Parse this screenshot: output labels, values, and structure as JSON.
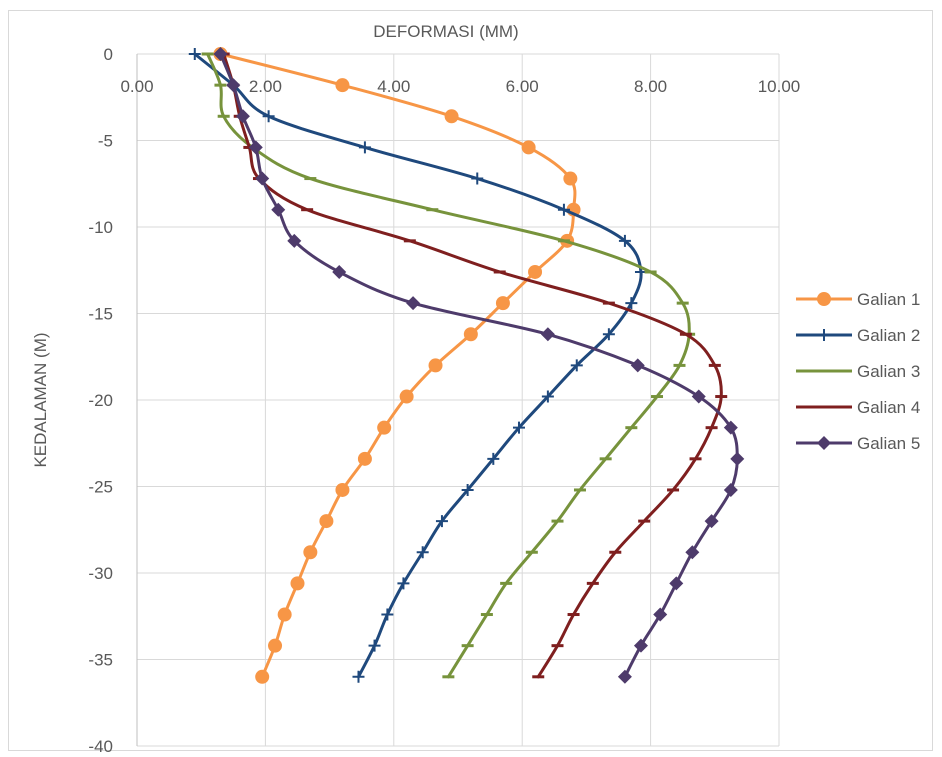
{
  "chart_data": {
    "type": "line",
    "title": "DEFORMASI (MM)",
    "xlabel": "",
    "ylabel": "KEDALAMAN (M)",
    "xlim": [
      0,
      10
    ],
    "ylim": [
      -40,
      0
    ],
    "x_axis_position": "top",
    "x_ticks": [
      0,
      2,
      4,
      6,
      8,
      10
    ],
    "x_tick_labels": [
      "0.00",
      "2.00",
      "4.00",
      "6.00",
      "8.00",
      "10.00"
    ],
    "y_ticks": [
      0,
      -5,
      -10,
      -15,
      -20,
      -25,
      -30,
      -35,
      -40
    ],
    "y_tick_labels": [
      "0",
      "-5",
      "-10",
      "-15",
      "-20",
      "-25",
      "-30",
      "-35",
      "-40"
    ],
    "grid": true,
    "legend_position": "right",
    "series": [
      {
        "name": "Galian 1",
        "color": "#F79646",
        "marker": "circle",
        "points": [
          [
            1.3,
            0
          ],
          [
            3.2,
            -1.8
          ],
          [
            4.9,
            -3.6
          ],
          [
            6.1,
            -5.4
          ],
          [
            6.75,
            -7.2
          ],
          [
            6.8,
            -9
          ],
          [
            6.7,
            -10.8
          ],
          [
            6.2,
            -12.6
          ],
          [
            5.7,
            -14.4
          ],
          [
            5.2,
            -16.2
          ],
          [
            4.65,
            -18
          ],
          [
            4.2,
            -19.8
          ],
          [
            3.85,
            -21.6
          ],
          [
            3.55,
            -23.4
          ],
          [
            3.2,
            -25.2
          ],
          [
            2.95,
            -27
          ],
          [
            2.7,
            -28.8
          ],
          [
            2.5,
            -30.6
          ],
          [
            2.3,
            -32.4
          ],
          [
            2.15,
            -34.2
          ],
          [
            1.95,
            -36
          ]
        ]
      },
      {
        "name": "Galian 2",
        "color": "#1F497D",
        "marker": "plus",
        "points": [
          [
            0.9,
            0
          ],
          [
            1.5,
            -1.8
          ],
          [
            2.05,
            -3.6
          ],
          [
            3.55,
            -5.4
          ],
          [
            5.3,
            -7.2
          ],
          [
            6.65,
            -9
          ],
          [
            7.6,
            -10.8
          ],
          [
            7.85,
            -12.6
          ],
          [
            7.7,
            -14.4
          ],
          [
            7.35,
            -16.2
          ],
          [
            6.85,
            -18
          ],
          [
            6.4,
            -19.8
          ],
          [
            5.95,
            -21.6
          ],
          [
            5.55,
            -23.4
          ],
          [
            5.15,
            -25.2
          ],
          [
            4.75,
            -27
          ],
          [
            4.45,
            -28.8
          ],
          [
            4.15,
            -30.6
          ],
          [
            3.9,
            -32.4
          ],
          [
            3.7,
            -34.2
          ],
          [
            3.45,
            -36
          ]
        ]
      },
      {
        "name": "Galian 3",
        "color": "#77933C",
        "marker": "dash",
        "points": [
          [
            1.1,
            0
          ],
          [
            1.3,
            -1.8
          ],
          [
            1.35,
            -3.6
          ],
          [
            1.8,
            -5.4
          ],
          [
            2.7,
            -7.2
          ],
          [
            4.6,
            -9
          ],
          [
            6.65,
            -10.8
          ],
          [
            8.0,
            -12.6
          ],
          [
            8.5,
            -14.4
          ],
          [
            8.6,
            -16.2
          ],
          [
            8.45,
            -18
          ],
          [
            8.1,
            -19.8
          ],
          [
            7.7,
            -21.6
          ],
          [
            7.3,
            -23.4
          ],
          [
            6.9,
            -25.2
          ],
          [
            6.55,
            -27
          ],
          [
            6.15,
            -28.8
          ],
          [
            5.75,
            -30.6
          ],
          [
            5.45,
            -32.4
          ],
          [
            5.15,
            -34.2
          ],
          [
            4.85,
            -36
          ]
        ]
      },
      {
        "name": "Galian 4",
        "color": "#7F1F1F",
        "marker": "dash",
        "points": [
          [
            1.35,
            0
          ],
          [
            1.5,
            -1.8
          ],
          [
            1.6,
            -3.6
          ],
          [
            1.75,
            -5.4
          ],
          [
            1.9,
            -7.2
          ],
          [
            2.65,
            -9
          ],
          [
            4.25,
            -10.8
          ],
          [
            5.65,
            -12.6
          ],
          [
            7.35,
            -14.4
          ],
          [
            8.55,
            -16.2
          ],
          [
            9.0,
            -18
          ],
          [
            9.1,
            -19.8
          ],
          [
            8.95,
            -21.6
          ],
          [
            8.7,
            -23.4
          ],
          [
            8.35,
            -25.2
          ],
          [
            7.9,
            -27
          ],
          [
            7.45,
            -28.8
          ],
          [
            7.1,
            -30.6
          ],
          [
            6.8,
            -32.4
          ],
          [
            6.55,
            -34.2
          ],
          [
            6.25,
            -36
          ]
        ]
      },
      {
        "name": "Galian 5",
        "color": "#4E3B6B",
        "marker": "diamond",
        "points": [
          [
            1.3,
            0
          ],
          [
            1.5,
            -1.8
          ],
          [
            1.65,
            -3.6
          ],
          [
            1.85,
            -5.4
          ],
          [
            1.95,
            -7.2
          ],
          [
            2.2,
            -9
          ],
          [
            2.45,
            -10.8
          ],
          [
            3.15,
            -12.6
          ],
          [
            4.3,
            -14.4
          ],
          [
            6.4,
            -16.2
          ],
          [
            7.8,
            -18
          ],
          [
            8.75,
            -19.8
          ],
          [
            9.25,
            -21.6
          ],
          [
            9.35,
            -23.4
          ],
          [
            9.25,
            -25.2
          ],
          [
            8.95,
            -27
          ],
          [
            8.65,
            -28.8
          ],
          [
            8.4,
            -30.6
          ],
          [
            8.15,
            -32.4
          ],
          [
            7.85,
            -34.2
          ],
          [
            7.6,
            -36
          ]
        ]
      }
    ]
  }
}
